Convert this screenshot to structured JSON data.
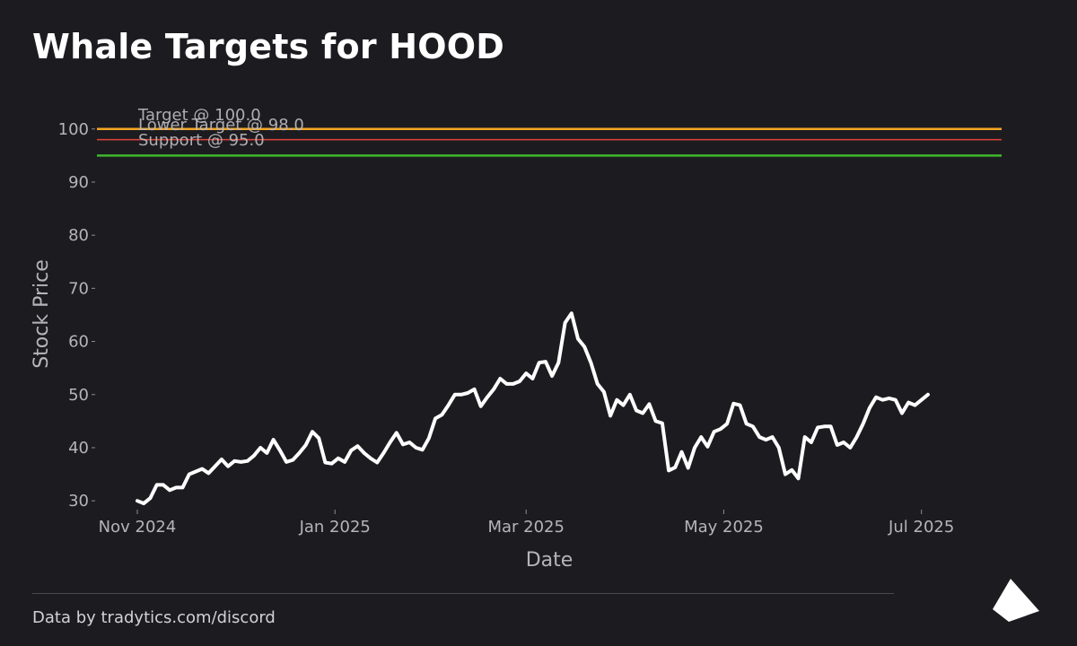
{
  "header": {
    "title": "Whale Targets for HOOD"
  },
  "footer": {
    "credit": "Data by tradytics.com/discord"
  },
  "logo": {
    "icon": "triangle-logo-icon",
    "color": "#ffffff"
  },
  "chart_data": {
    "type": "line",
    "title": "Whale Targets for HOOD",
    "xlabel": "Date",
    "ylabel": "Stock Price",
    "x_range": [
      "2024-11-01",
      "2025-07-13"
    ],
    "ylim": [
      28,
      103
    ],
    "yticks": [
      30,
      40,
      50,
      60,
      70,
      80,
      90,
      100
    ],
    "xticks": [
      {
        "label": "Nov 2024",
        "date": "2024-11-01"
      },
      {
        "label": "Jan 2025",
        "date": "2025-01-01"
      },
      {
        "label": "Mar 2025",
        "date": "2025-03-01"
      },
      {
        "label": "May 2025",
        "date": "2025-05-01"
      },
      {
        "label": "Jul 2025",
        "date": "2025-07-01"
      }
    ],
    "grid": false,
    "colors": {
      "background": "#1c1c20",
      "price": "#ffffff",
      "axis_text": "#b4b4bc",
      "tick_mark": "#8c8c94"
    },
    "levels": [
      {
        "label": "Target @ 100.0",
        "value": 100.0,
        "color": "#f5a623"
      },
      {
        "label": "Lower Target @ 98.0",
        "value": 98.0,
        "color": "#e0443a"
      },
      {
        "label": "Support @ 95.0",
        "value": 95.0,
        "color": "#3fb82e"
      }
    ],
    "series": [
      {
        "color": "#ffffff",
        "points": [
          [
            "2024-11-01",
            30.0
          ],
          [
            "2024-11-03",
            29.5
          ],
          [
            "2024-11-05",
            30.5
          ],
          [
            "2024-11-07",
            33.0
          ],
          [
            "2024-11-09",
            33.0
          ],
          [
            "2024-11-11",
            32.0
          ],
          [
            "2024-11-13",
            32.5
          ],
          [
            "2024-11-15",
            32.5
          ],
          [
            "2024-11-17",
            35.0
          ],
          [
            "2024-11-19",
            35.5
          ],
          [
            "2024-11-21",
            36.0
          ],
          [
            "2024-11-23",
            35.2
          ],
          [
            "2024-11-25",
            36.5
          ],
          [
            "2024-11-27",
            37.8
          ],
          [
            "2024-11-29",
            36.5
          ],
          [
            "2024-12-01",
            37.5
          ],
          [
            "2024-12-03",
            37.3
          ],
          [
            "2024-12-05",
            37.5
          ],
          [
            "2024-12-07",
            38.5
          ],
          [
            "2024-12-09",
            40.0
          ],
          [
            "2024-12-11",
            39.0
          ],
          [
            "2024-12-13",
            41.5
          ],
          [
            "2024-12-15",
            39.5
          ],
          [
            "2024-12-17",
            37.3
          ],
          [
            "2024-12-19",
            37.7
          ],
          [
            "2024-12-21",
            39.0
          ],
          [
            "2024-12-23",
            40.5
          ],
          [
            "2024-12-25",
            43.0
          ],
          [
            "2024-12-27",
            41.8
          ],
          [
            "2024-12-29",
            37.2
          ],
          [
            "2024-12-31",
            37.0
          ],
          [
            "2025-01-02",
            38.0
          ],
          [
            "2025-01-04",
            37.3
          ],
          [
            "2025-01-06",
            39.5
          ],
          [
            "2025-01-08",
            40.3
          ],
          [
            "2025-01-10",
            39.0
          ],
          [
            "2025-01-12",
            38.0
          ],
          [
            "2025-01-14",
            37.2
          ],
          [
            "2025-01-16",
            39.0
          ],
          [
            "2025-01-18",
            41.0
          ],
          [
            "2025-01-20",
            42.8
          ],
          [
            "2025-01-22",
            40.6
          ],
          [
            "2025-01-24",
            41.0
          ],
          [
            "2025-01-26",
            40.0
          ],
          [
            "2025-01-28",
            39.6
          ],
          [
            "2025-01-30",
            41.8
          ],
          [
            "2025-02-01",
            45.5
          ],
          [
            "2025-02-03",
            46.2
          ],
          [
            "2025-02-05",
            48.0
          ],
          [
            "2025-02-07",
            50.0
          ],
          [
            "2025-02-09",
            50.0
          ],
          [
            "2025-02-11",
            50.3
          ],
          [
            "2025-02-13",
            51.0
          ],
          [
            "2025-02-15",
            47.8
          ],
          [
            "2025-02-17",
            49.5
          ],
          [
            "2025-02-19",
            51.0
          ],
          [
            "2025-02-21",
            53.0
          ],
          [
            "2025-02-23",
            52.0
          ],
          [
            "2025-02-25",
            52.0
          ],
          [
            "2025-02-27",
            52.5
          ],
          [
            "2025-03-01",
            54.0
          ],
          [
            "2025-03-03",
            53.0
          ],
          [
            "2025-03-05",
            56.0
          ],
          [
            "2025-03-07",
            56.2
          ],
          [
            "2025-03-09",
            53.5
          ],
          [
            "2025-03-11",
            56.0
          ],
          [
            "2025-03-13",
            63.5
          ],
          [
            "2025-03-15",
            65.3
          ],
          [
            "2025-03-17",
            60.5
          ],
          [
            "2025-03-19",
            59.0
          ],
          [
            "2025-03-21",
            56.0
          ],
          [
            "2025-03-23",
            52.0
          ],
          [
            "2025-03-25",
            50.5
          ],
          [
            "2025-03-27",
            46.0
          ],
          [
            "2025-03-29",
            49.0
          ],
          [
            "2025-03-31",
            48.0
          ],
          [
            "2025-04-02",
            50.0
          ],
          [
            "2025-04-04",
            47.0
          ],
          [
            "2025-04-06",
            46.5
          ],
          [
            "2025-04-08",
            48.2
          ],
          [
            "2025-04-10",
            45.0
          ],
          [
            "2025-04-12",
            44.6
          ],
          [
            "2025-04-14",
            35.7
          ],
          [
            "2025-04-16",
            36.3
          ],
          [
            "2025-04-18",
            39.2
          ],
          [
            "2025-04-20",
            36.2
          ],
          [
            "2025-04-22",
            40.0
          ],
          [
            "2025-04-24",
            42.0
          ],
          [
            "2025-04-26",
            40.2
          ],
          [
            "2025-04-28",
            43.0
          ],
          [
            "2025-04-30",
            43.5
          ],
          [
            "2025-05-02",
            44.5
          ],
          [
            "2025-05-04",
            48.3
          ],
          [
            "2025-05-06",
            48.0
          ],
          [
            "2025-05-08",
            44.5
          ],
          [
            "2025-05-10",
            44.0
          ],
          [
            "2025-05-12",
            42.0
          ],
          [
            "2025-05-14",
            41.5
          ],
          [
            "2025-05-16",
            42.0
          ],
          [
            "2025-05-18",
            40.0
          ],
          [
            "2025-05-20",
            35.0
          ],
          [
            "2025-05-22",
            35.8
          ],
          [
            "2025-05-24",
            34.2
          ],
          [
            "2025-05-26",
            42.0
          ],
          [
            "2025-05-28",
            41.0
          ],
          [
            "2025-05-30",
            43.8
          ],
          [
            "2025-06-01",
            44.0
          ],
          [
            "2025-06-03",
            44.0
          ],
          [
            "2025-06-05",
            40.5
          ],
          [
            "2025-06-07",
            41.0
          ],
          [
            "2025-06-09",
            40.0
          ],
          [
            "2025-06-11",
            42.0
          ],
          [
            "2025-06-13",
            44.5
          ],
          [
            "2025-06-15",
            47.5
          ],
          [
            "2025-06-17",
            49.5
          ],
          [
            "2025-06-19",
            49.0
          ],
          [
            "2025-06-21",
            49.3
          ],
          [
            "2025-06-23",
            49.0
          ],
          [
            "2025-06-25",
            46.5
          ],
          [
            "2025-06-27",
            48.5
          ],
          [
            "2025-06-29",
            48.0
          ],
          [
            "2025-07-01",
            49.0
          ],
          [
            "2025-07-03",
            50.0
          ]
        ]
      }
    ]
  }
}
